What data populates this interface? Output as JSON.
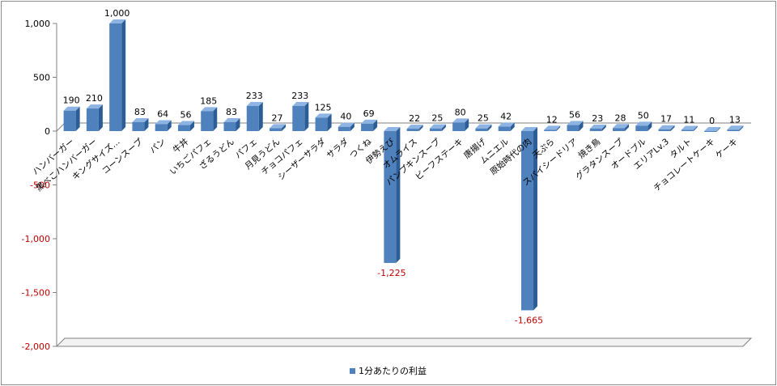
{
  "chart_data": {
    "type": "bar",
    "categories": [
      "ハンバーガー",
      "黒べこハンバーガー",
      "キングサイズ…",
      "コーンスープ",
      "パン",
      "牛丼",
      "いちごパフェ",
      "ざるうどん",
      "パフェ",
      "月見うどん",
      "チョコパフェ",
      "シーザーサラダ",
      "サラダ",
      "つくね",
      "伊勢えび",
      "オムライス",
      "パンプキンスープ",
      "ビーフステーキ",
      "唐揚げ",
      "ムニエル",
      "原始時代の肉",
      "天ぷら",
      "スパイシードリア",
      "焼き鳥",
      "グラタンスープ",
      "オードブル",
      "エリアLv.3",
      "タルト",
      "チョコレートケーキ",
      "ケーキ"
    ],
    "series": [
      {
        "name": "1分あたりの利益",
        "values": [
          190,
          210,
          1000,
          83,
          64,
          56,
          185,
          83,
          233,
          27,
          233,
          125,
          40,
          69,
          -1225,
          22,
          25,
          80,
          25,
          42,
          -1665,
          12,
          56,
          23,
          28,
          50,
          17,
          11,
          0,
          13
        ]
      }
    ],
    "value_labels": [
      "190",
      "210",
      "1,000",
      "83",
      "64",
      "56",
      "185",
      "83",
      "233",
      "27",
      "233",
      "125",
      "40",
      "69",
      "-1,225",
      "22",
      "25",
      "80",
      "25",
      "42",
      "-1,665",
      "12",
      "56",
      "23",
      "28",
      "50",
      "17",
      "11",
      "0",
      "13"
    ],
    "ylim": [
      -2000,
      1000
    ],
    "yticks": [
      1000,
      500,
      0,
      -500,
      -1000,
      -1500,
      -2000
    ],
    "ytick_labels": [
      "1,000",
      "500",
      "0",
      "-500",
      "-1,000",
      "-1,500",
      "-2,000"
    ],
    "gridlines": false,
    "legend_position": "bottom",
    "colors": {
      "bar_front": "#4f81bd",
      "bar_side": "#2c5d96",
      "bar_top": "#8eb4e3",
      "negative_tick": "#c00000",
      "positive_tick": "#000000",
      "axis": "#808080"
    }
  }
}
